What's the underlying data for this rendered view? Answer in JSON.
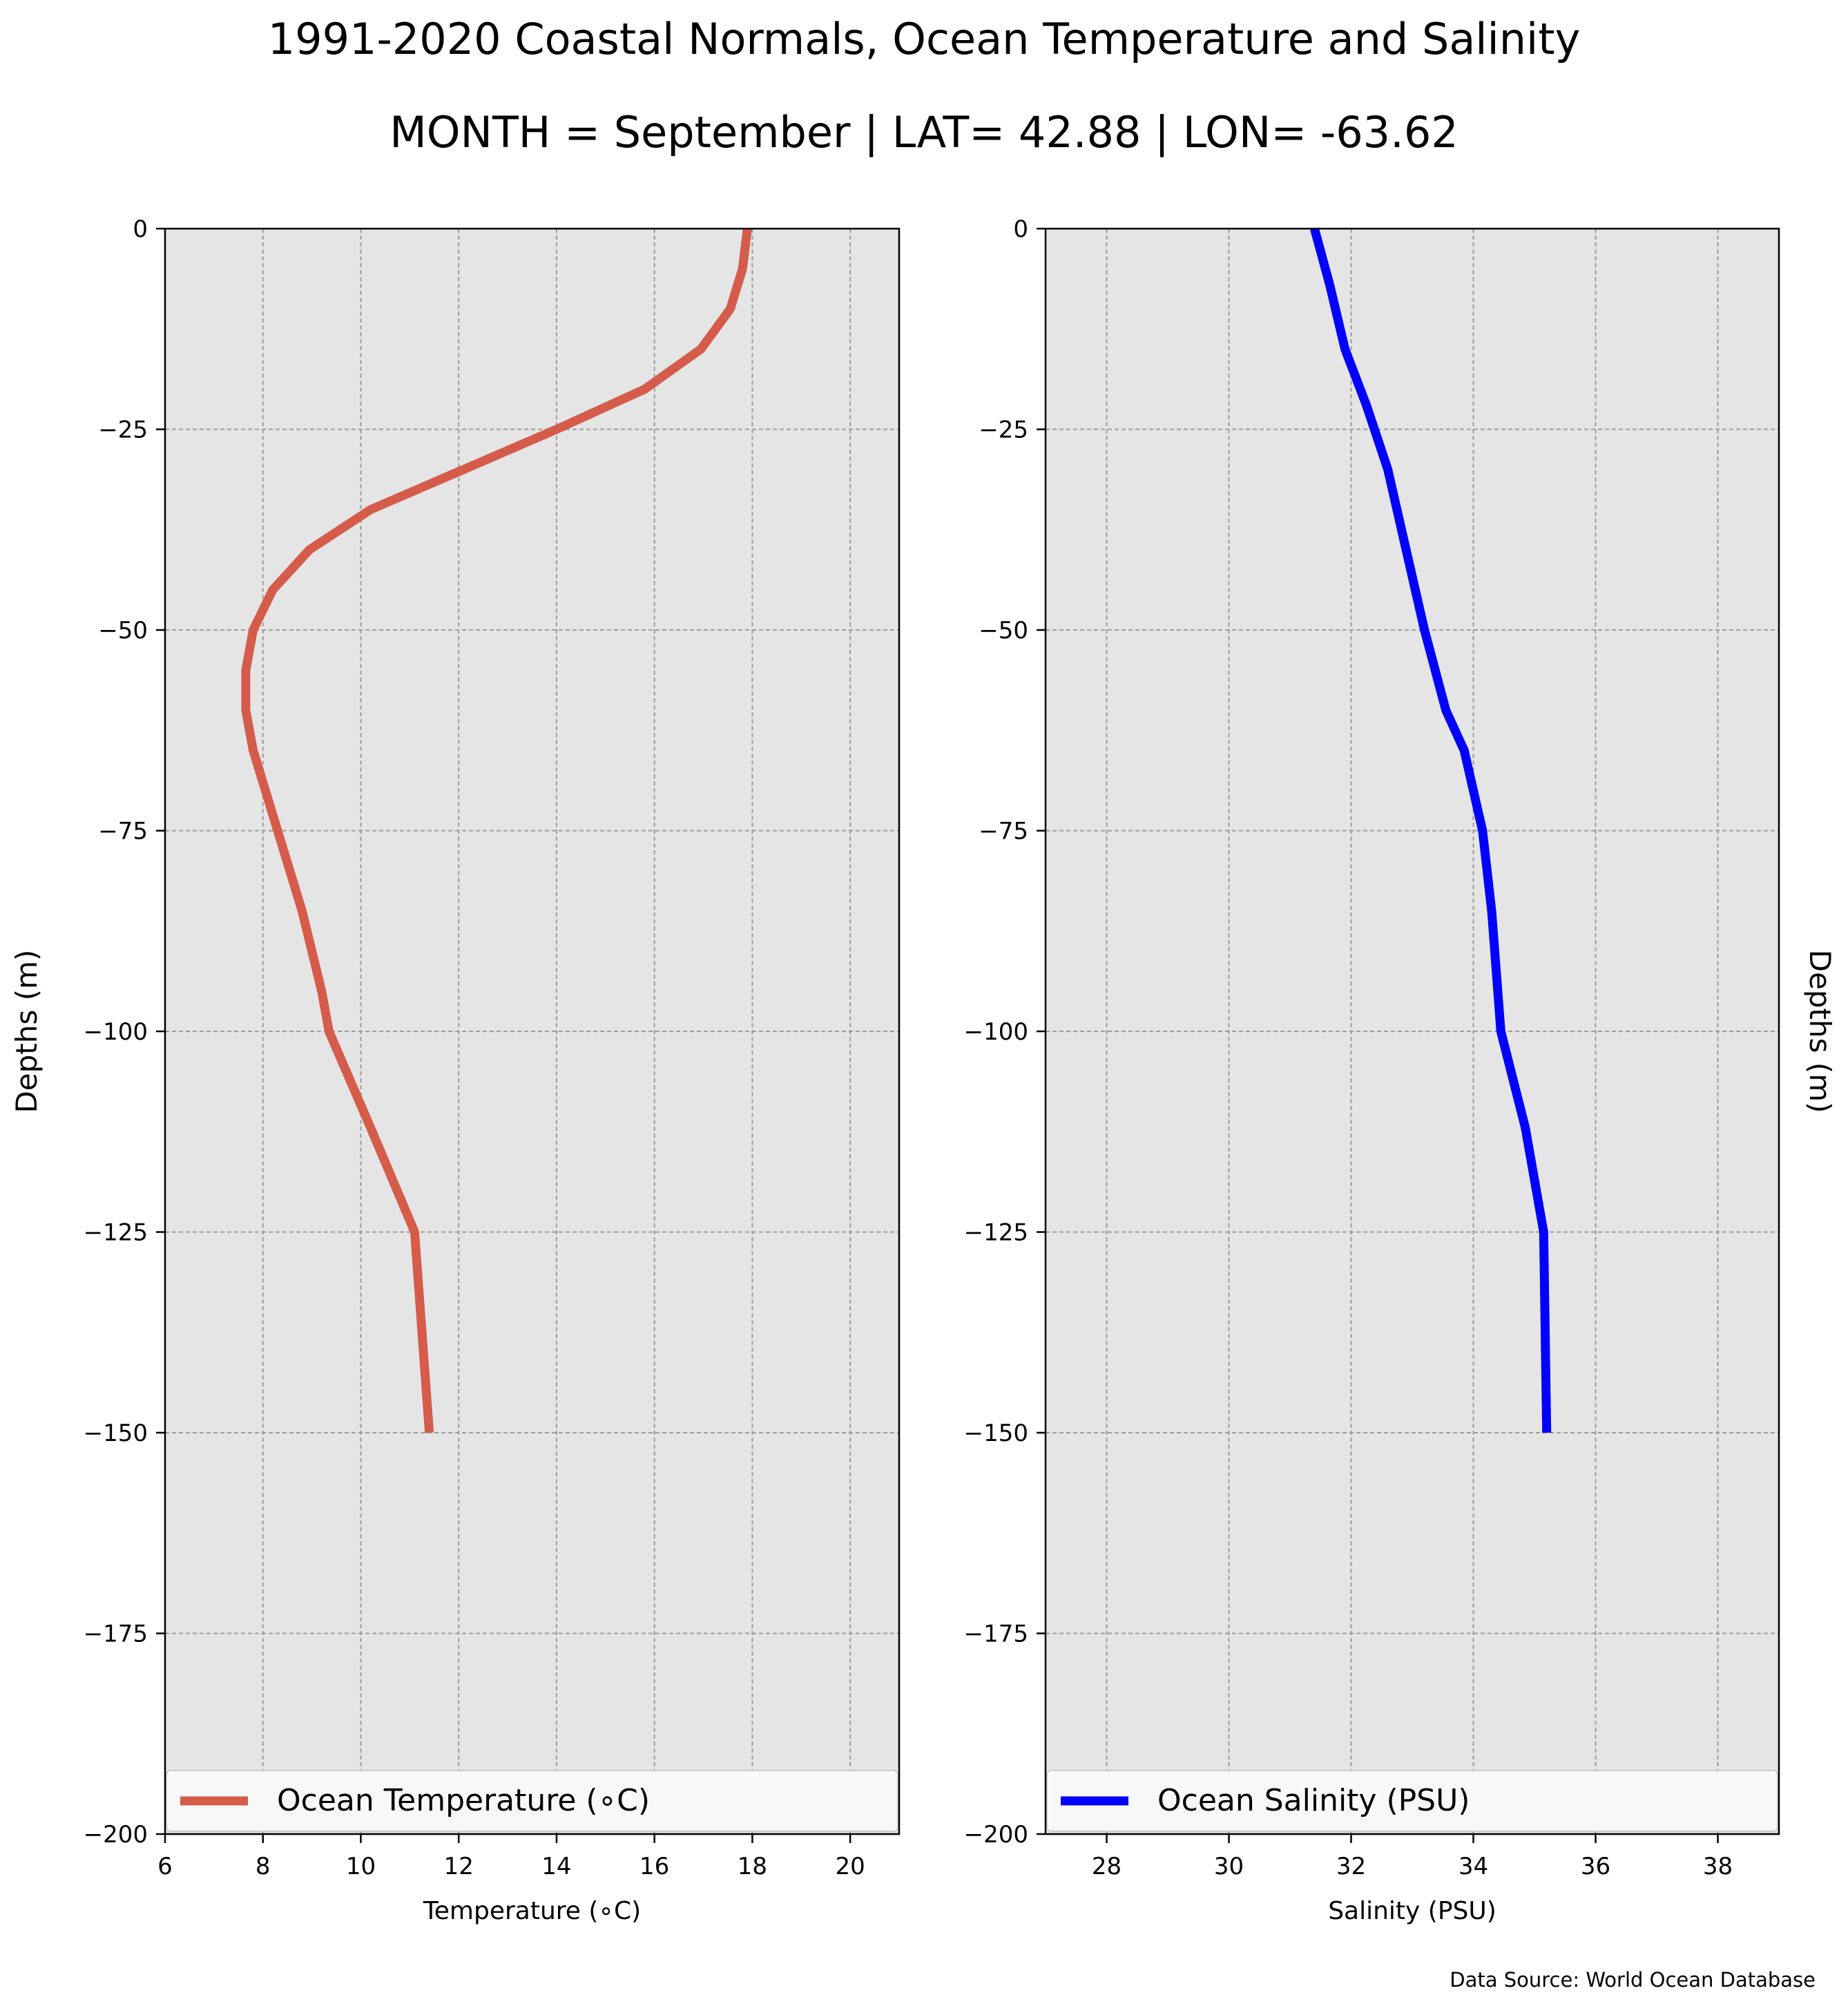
{
  "figure": {
    "title": "1991-2020 Coastal Normals, Ocean Temperature and Salinity",
    "subtitle": "MONTH = September | LAT= 42.88 | LON= -63.62",
    "source_note": "Data Source: World Ocean Database"
  },
  "chart_data": [
    {
      "type": "line",
      "xlabel": "Temperature (∘C)",
      "ylabel": "Depths (m)",
      "xlim": [
        6,
        21
      ],
      "ylim": [
        -200,
        0
      ],
      "xticks": [
        6,
        8,
        10,
        12,
        14,
        16,
        18,
        20
      ],
      "yticks": [
        0,
        -25,
        -50,
        -75,
        -100,
        -125,
        -150,
        -175,
        -200
      ],
      "ytick_labels": [
        "0",
        "−25",
        "−50",
        "−75",
        "−100",
        "−125",
        "−150",
        "−175",
        "−200"
      ],
      "grid": true,
      "legend_position": "bottom",
      "ylabel_side": "left",
      "colors": {
        "background": "#e6e5e6",
        "line": "#d55c4a"
      },
      "series": [
        {
          "name": "Ocean Temperature (∘C)",
          "x": [
            17.9,
            17.8,
            17.55,
            16.95,
            15.8,
            14.0,
            12.1,
            10.2,
            8.95,
            8.2,
            7.8,
            7.65,
            7.65,
            7.8,
            8.3,
            8.8,
            9.2,
            9.35,
            10.2,
            11.1,
            11.4
          ],
          "y": [
            0,
            -5,
            -10,
            -15,
            -20,
            -25,
            -30,
            -35,
            -40,
            -45,
            -50,
            -55,
            -60,
            -65,
            -75,
            -85,
            -95,
            -100,
            -112,
            -125,
            -150
          ]
        }
      ]
    },
    {
      "type": "line",
      "xlabel": "Salinity (PSU)",
      "ylabel": "Depths (m)",
      "xlim": [
        27,
        39
      ],
      "ylim": [
        -200,
        0
      ],
      "xticks": [
        28,
        30,
        32,
        34,
        36,
        38
      ],
      "yticks": [
        0,
        -25,
        -50,
        -75,
        -100,
        -125,
        -150,
        -175,
        -200
      ],
      "ytick_labels": [
        "0",
        "−25",
        "−50",
        "−75",
        "−100",
        "−125",
        "−150",
        "−175",
        "−200"
      ],
      "grid": true,
      "legend_position": "bottom",
      "ylabel_side": "right",
      "colors": {
        "background": "#e6e5e6",
        "line": "#0000ff"
      },
      "series": [
        {
          "name": "Ocean Salinity (PSU)",
          "x": [
            31.4,
            31.65,
            31.9,
            32.25,
            32.6,
            32.9,
            33.2,
            33.55,
            33.85,
            34.15,
            34.3,
            34.45,
            34.85,
            35.15,
            35.2
          ],
          "y": [
            0,
            -7,
            -15,
            -22,
            -30,
            -40,
            -50,
            -60,
            -65,
            -75,
            -85,
            -100,
            -112,
            -125,
            -150
          ]
        }
      ]
    }
  ]
}
